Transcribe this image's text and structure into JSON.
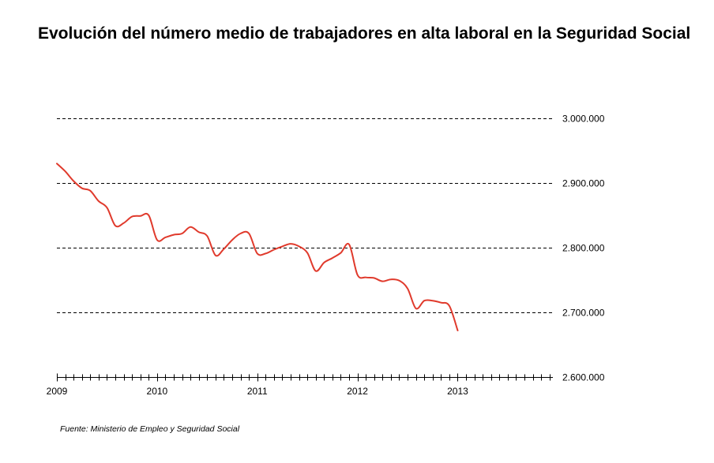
{
  "chart_data": {
    "type": "line",
    "title": "Evolución del número medio de trabajadores en alta laboral en la Seguridad Social",
    "xlabel": "",
    "ylabel": "",
    "grid": true,
    "legend": "none",
    "xlim": [
      2009,
      2013.95
    ],
    "ylim": [
      2600000,
      3000000
    ],
    "x_ticks": [
      "2009",
      "2010",
      "2011",
      "2012",
      "2013"
    ],
    "y_ticks": [
      "3.000.000",
      "2.900.000",
      "2.800.000",
      "2.700.000",
      "2.600.000"
    ],
    "y_tick_values": [
      3000000,
      2900000,
      2800000,
      2700000,
      2600000
    ],
    "series": [
      {
        "color": "#e03a2c",
        "x": [
          "2009-01",
          "2009-02",
          "2009-03",
          "2009-04",
          "2009-05",
          "2009-06",
          "2009-07",
          "2009-08",
          "2009-09",
          "2009-10",
          "2009-11",
          "2009-12",
          "2010-01",
          "2010-02",
          "2010-03",
          "2010-04",
          "2010-05",
          "2010-06",
          "2010-07",
          "2010-08",
          "2010-09",
          "2010-10",
          "2010-11",
          "2010-12",
          "2011-01",
          "2011-02",
          "2011-03",
          "2011-04",
          "2011-05",
          "2011-06",
          "2011-07",
          "2011-08",
          "2011-09",
          "2011-10",
          "2011-11",
          "2011-12",
          "2012-01",
          "2012-02",
          "2012-03",
          "2012-04",
          "2012-05",
          "2012-06",
          "2012-07",
          "2012-08",
          "2012-09",
          "2012-10",
          "2012-11",
          "2012-12",
          "2013-01"
        ],
        "values": [
          2930000,
          2918000,
          2903000,
          2892000,
          2888000,
          2872000,
          2862000,
          2834000,
          2838000,
          2848000,
          2849000,
          2850000,
          2812000,
          2816000,
          2820000,
          2822000,
          2832000,
          2824000,
          2818000,
          2788000,
          2798000,
          2812000,
          2822000,
          2822000,
          2791000,
          2791000,
          2797000,
          2802000,
          2806000,
          2802000,
          2792000,
          2764000,
          2777000,
          2784000,
          2792000,
          2805000,
          2758000,
          2754000,
          2753000,
          2748000,
          2751000,
          2749000,
          2737000,
          2706000,
          2718000,
          2718000,
          2715000,
          2710000,
          2672000
        ]
      }
    ]
  },
  "source": "Fuente: Ministerio de Empleo y Seguridad Social"
}
